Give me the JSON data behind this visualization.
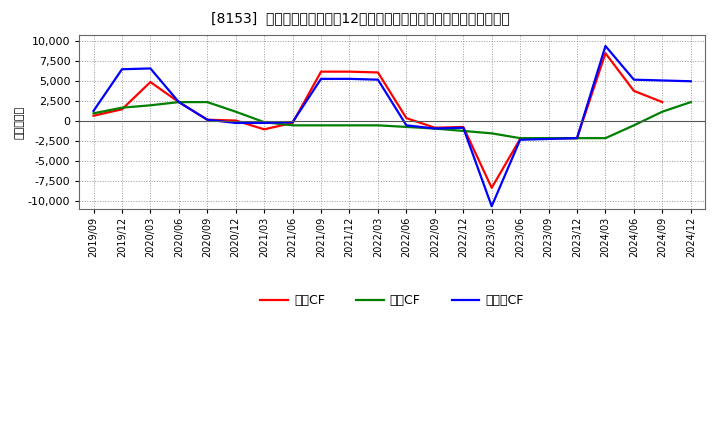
{
  "title": "[8153]  キャッシュフローの12か月移動合計の対前年同期増減額の推移",
  "ylabel": "（百万円）",
  "background_color": "#ffffff",
  "plot_bg_color": "#ffffff",
  "grid_color": "#999999",
  "x_labels": [
    "2019/09",
    "2019/12",
    "2020/03",
    "2020/06",
    "2020/09",
    "2020/12",
    "2021/03",
    "2021/06",
    "2021/09",
    "2021/12",
    "2022/03",
    "2022/06",
    "2022/09",
    "2022/12",
    "2023/03",
    "2023/06",
    "2023/09",
    "2023/12",
    "2024/03",
    "2024/06",
    "2024/09",
    "2024/12"
  ],
  "operating_cf": [
    700,
    1500,
    4900,
    2400,
    200,
    100,
    -1000,
    -200,
    6200,
    6200,
    6100,
    400,
    -800,
    -700,
    -8300,
    -2200,
    -2100,
    -2100,
    8500,
    3800,
    2400,
    null
  ],
  "investing_cf": [
    1000,
    1700,
    2000,
    2400,
    2400,
    1200,
    -100,
    -500,
    -500,
    -500,
    -500,
    -700,
    -900,
    -1200,
    -1500,
    -2100,
    -2100,
    -2100,
    -2100,
    -500,
    1200,
    2400
  ],
  "free_cf": [
    1300,
    6500,
    6600,
    2400,
    200,
    -200,
    -200,
    -100,
    5300,
    5300,
    5200,
    -500,
    -900,
    -800,
    -10600,
    -2300,
    -2200,
    -2100,
    9400,
    5200,
    5100,
    5000
  ],
  "operating_color": "#ff0000",
  "investing_color": "#008000",
  "free_color": "#0000ff",
  "ylim": [
    -11000,
    10800
  ],
  "yticks": [
    -10000,
    -7500,
    -5000,
    -2500,
    0,
    2500,
    5000,
    7500,
    10000
  ],
  "legend_labels": [
    "営業CF",
    "投資CF",
    "フリーCF"
  ],
  "line_width": 1.6
}
